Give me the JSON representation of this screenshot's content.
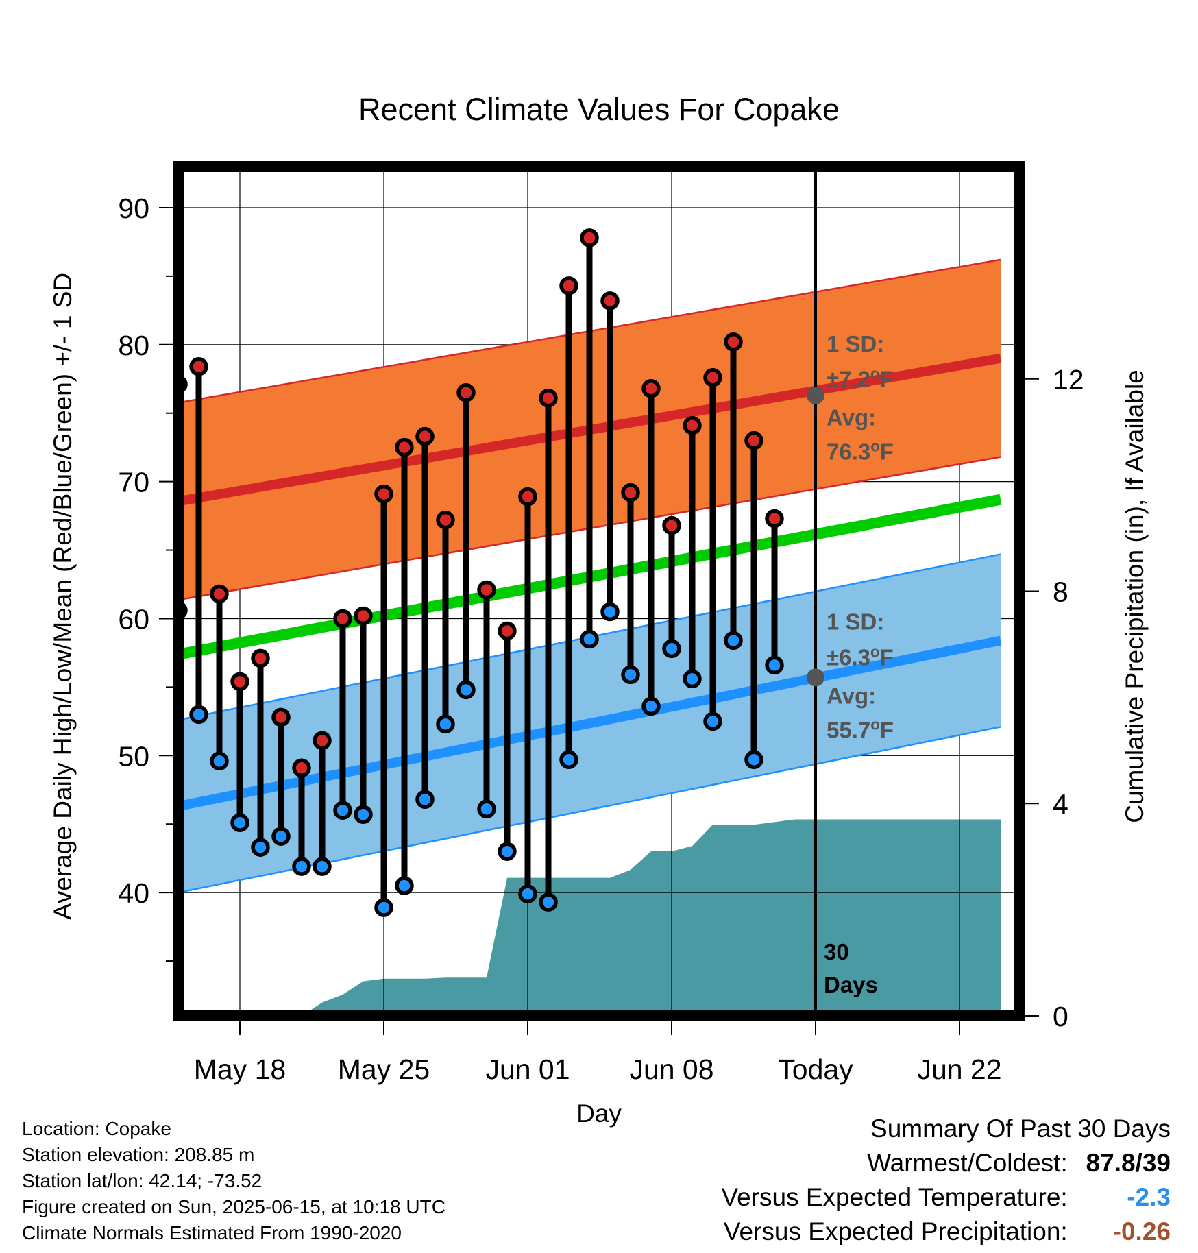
{
  "chart_data": {
    "type": "line",
    "title": "Recent Climate Values For Copake",
    "xlabel": "Day",
    "ylabel": "Average Daily High/Low/Mean (Red/Blue/Green) +/- 1 SD",
    "y2label": "Cumulative Precipitation (in), If Available",
    "x_tick_labels": [
      "May 18",
      "May 25",
      "Jun 01",
      "Jun 08",
      "Today",
      "Jun 22"
    ],
    "x_tick_dates": [
      "2025-05-18",
      "2025-05-25",
      "2025-06-01",
      "2025-06-08",
      "2025-06-15",
      "2025-06-22"
    ],
    "x_range": [
      "2025-05-14",
      "2025-06-24"
    ],
    "ylim": [
      31,
      93
    ],
    "y_ticks": [
      40,
      50,
      60,
      70,
      80,
      90
    ],
    "y2lim": [
      0,
      16
    ],
    "y2_ticks": [
      0,
      4,
      8,
      12
    ],
    "today": "2025-06-15",
    "grid": true,
    "days": [
      "2025-05-15",
      "2025-05-16",
      "2025-05-17",
      "2025-05-18",
      "2025-05-19",
      "2025-05-20",
      "2025-05-21",
      "2025-05-22",
      "2025-05-23",
      "2025-05-24",
      "2025-05-25",
      "2025-05-26",
      "2025-05-27",
      "2025-05-28",
      "2025-05-29",
      "2025-05-30",
      "2025-05-31",
      "2025-06-01",
      "2025-06-02",
      "2025-06-03",
      "2025-06-04",
      "2025-06-05",
      "2025-06-06",
      "2025-06-07",
      "2025-06-08",
      "2025-06-09",
      "2025-06-10",
      "2025-06-11",
      "2025-06-12",
      "2025-06-13",
      "2025-06-14"
    ],
    "series": [
      {
        "values": [
          77.1,
          78.4,
          61.8,
          55.4,
          57.1,
          52.8,
          49.1,
          51.1,
          60.0,
          60.2,
          69.1,
          72.5,
          73.3,
          67.2,
          76.5,
          62.1,
          59.1,
          68.9,
          76.1,
          84.3,
          87.8,
          83.2,
          69.2,
          76.8,
          66.8,
          74.1,
          77.6,
          80.2,
          73.0,
          67.3,
          null
        ]
      },
      {
        "values": [
          60.6,
          53.0,
          49.6,
          45.1,
          43.3,
          44.1,
          41.9,
          41.9,
          46.0,
          45.7,
          38.9,
          40.5,
          46.8,
          52.3,
          54.8,
          46.1,
          43.0,
          39.9,
          39.3,
          49.7,
          58.5,
          60.5,
          55.9,
          53.6,
          57.8,
          55.6,
          52.5,
          58.4,
          49.7,
          56.6,
          null
        ]
      }
    ],
    "normal_high": {
      "start": 68.3,
      "end": 79.0,
      "sd": 7.2
    },
    "normal_low": {
      "start": 46.0,
      "end": 58.4,
      "sd": 6.3
    },
    "normal_mean": {
      "start": 57.1,
      "end": 68.7
    },
    "precip_dates": [
      "2025-05-14",
      "2025-05-20",
      "2025-05-21",
      "2025-05-22",
      "2025-05-23",
      "2025-05-24",
      "2025-05-25",
      "2025-05-26",
      "2025-05-27",
      "2025-05-28",
      "2025-05-29",
      "2025-05-30",
      "2025-05-31",
      "2025-06-01",
      "2025-06-02",
      "2025-06-03",
      "2025-06-04",
      "2025-06-05",
      "2025-06-06",
      "2025-06-07",
      "2025-06-08",
      "2025-06-09",
      "2025-06-10",
      "2025-06-11",
      "2025-06-12",
      "2025-06-13",
      "2025-06-14",
      "2025-06-24"
    ],
    "precip_values": [
      0.0,
      0.0,
      0.0,
      0.25,
      0.4,
      0.65,
      0.7,
      0.7,
      0.7,
      0.72,
      0.72,
      0.72,
      2.6,
      2.6,
      2.6,
      2.6,
      2.6,
      2.6,
      2.75,
      3.1,
      3.1,
      3.2,
      3.6,
      3.6,
      3.6,
      3.65,
      3.7,
      3.7
    ],
    "annotations": {
      "high_sd_label": "1 SD:",
      "high_sd_value": "±7.2°F",
      "high_avg_label": "Avg:",
      "high_avg_value": "76.3°F",
      "low_sd_label": "1 SD:",
      "low_sd_value": "±6.3°F",
      "low_avg_label": "Avg:",
      "low_avg_value": "55.7°F",
      "days_count": "30",
      "days_word": "Days"
    },
    "today_high_avg": 76.3,
    "today_low_avg": 55.7,
    "colors": {
      "high_band": "#f47a33",
      "high_line": "#d62728",
      "low_band": "#86c1e8",
      "low_line": "#1e90ff",
      "mean_line": "#00cc00",
      "precip": "#4a9aa3",
      "high_dot": "#d62728",
      "low_dot": "#1e90ff"
    }
  },
  "footer": {
    "location": "Location: Copake",
    "elevation": "Station elevation: 208.85 m",
    "latlon": "Station lat/lon: 42.14; -73.52",
    "created": "Figure created on Sun, 2025-06-15, at 10:18 UTC",
    "normals": "Climate Normals Estimated From 1990-2020"
  },
  "summary": {
    "heading": "Summary Of Past 30 Days",
    "warmest_label": "Warmest/Coldest:",
    "warmest_value": "87.8/39",
    "temp_label": "Versus Expected Temperature:",
    "temp_value": "-2.3",
    "temp_color": "#2a8fe8",
    "precip_label": "Versus Expected Precipitation:",
    "precip_value": "-0.26",
    "precip_color": "#a0522d"
  }
}
